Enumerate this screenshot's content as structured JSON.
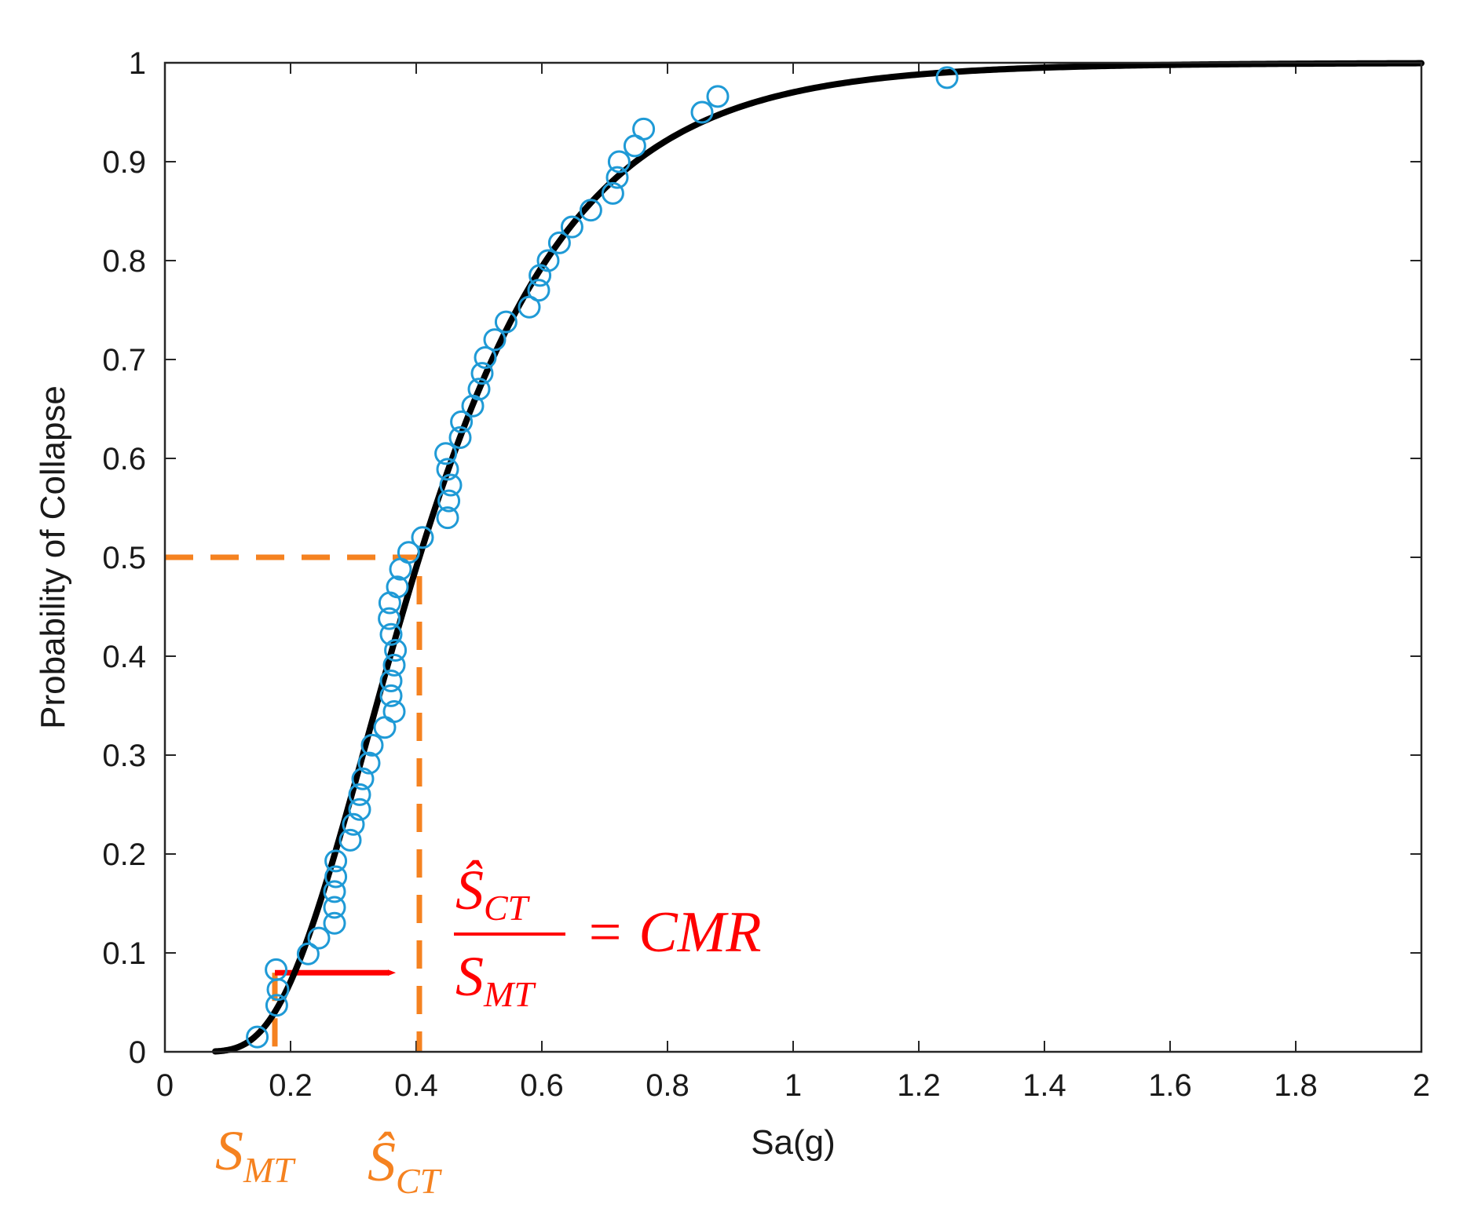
{
  "chart_data": {
    "type": "scatter",
    "xlabel": "Sa(g)",
    "ylabel": "Probability of Collapse",
    "xlim": [
      0,
      2
    ],
    "ylim": [
      0,
      1
    ],
    "xticks": [
      0,
      0.2,
      0.4,
      0.6,
      0.8,
      1,
      1.2,
      1.4,
      1.6,
      1.8,
      2
    ],
    "xtick_labels": [
      "0",
      "0.2",
      "0.4",
      "0.6",
      "0.8",
      "1",
      "1.2",
      "1.4",
      "1.6",
      "1.8",
      "2"
    ],
    "yticks": [
      0,
      0.1,
      0.2,
      0.3,
      0.4,
      0.5,
      0.6,
      0.7,
      0.8,
      0.9,
      1
    ],
    "ytick_labels": [
      "0",
      "0.1",
      "0.2",
      "0.3",
      "0.4",
      "0.5",
      "0.6",
      "0.7",
      "0.8",
      "0.9",
      "1"
    ],
    "grid": false,
    "fit_curve": {
      "name": "lognormal fragility fit",
      "color": "#000000",
      "median": 0.405,
      "beta": 0.48,
      "x_range": [
        0.08,
        2.0
      ]
    },
    "scatter_series": {
      "name": "collapse data",
      "color": "#1f9ad6",
      "points": [
        [
          0.147,
          0.015
        ],
        [
          0.178,
          0.047
        ],
        [
          0.18,
          0.063
        ],
        [
          0.177,
          0.083
        ],
        [
          0.228,
          0.099
        ],
        [
          0.245,
          0.115
        ],
        [
          0.27,
          0.13
        ],
        [
          0.27,
          0.146
        ],
        [
          0.27,
          0.162
        ],
        [
          0.272,
          0.177
        ],
        [
          0.272,
          0.193
        ],
        [
          0.295,
          0.214
        ],
        [
          0.3,
          0.23
        ],
        [
          0.31,
          0.245
        ],
        [
          0.31,
          0.26
        ],
        [
          0.315,
          0.276
        ],
        [
          0.325,
          0.292
        ],
        [
          0.33,
          0.31
        ],
        [
          0.35,
          0.328
        ],
        [
          0.365,
          0.344
        ],
        [
          0.36,
          0.36
        ],
        [
          0.36,
          0.375
        ],
        [
          0.365,
          0.391
        ],
        [
          0.367,
          0.406
        ],
        [
          0.36,
          0.422
        ],
        [
          0.357,
          0.438
        ],
        [
          0.358,
          0.454
        ],
        [
          0.37,
          0.47
        ],
        [
          0.375,
          0.488
        ],
        [
          0.388,
          0.505
        ],
        [
          0.41,
          0.52
        ],
        [
          0.45,
          0.54
        ],
        [
          0.452,
          0.557
        ],
        [
          0.455,
          0.573
        ],
        [
          0.45,
          0.589
        ],
        [
          0.447,
          0.605
        ],
        [
          0.47,
          0.621
        ],
        [
          0.472,
          0.637
        ],
        [
          0.49,
          0.653
        ],
        [
          0.5,
          0.67
        ],
        [
          0.505,
          0.686
        ],
        [
          0.51,
          0.702
        ],
        [
          0.525,
          0.72
        ],
        [
          0.543,
          0.738
        ],
        [
          0.58,
          0.753
        ],
        [
          0.595,
          0.77
        ],
        [
          0.597,
          0.785
        ],
        [
          0.61,
          0.8
        ],
        [
          0.628,
          0.818
        ],
        [
          0.648,
          0.834
        ],
        [
          0.678,
          0.851
        ],
        [
          0.713,
          0.868
        ],
        [
          0.72,
          0.884
        ],
        [
          0.723,
          0.9
        ],
        [
          0.748,
          0.916
        ],
        [
          0.762,
          0.933
        ],
        [
          0.855,
          0.95
        ],
        [
          0.88,
          0.966
        ],
        [
          1.245,
          0.985
        ]
      ]
    },
    "guides": {
      "color": "#f58220",
      "median_probability": 0.5,
      "s_ct_hat": 0.405,
      "s_mt": 0.175,
      "arrow_y": 0.08,
      "arrow_color": "#ff0000"
    },
    "annotations": {
      "s_mt_label": {
        "base": "S",
        "subscript": "MT"
      },
      "s_ct_label": {
        "base": "Ŝ",
        "subscript": "CT"
      },
      "cmr_equation": {
        "numerator_base": "Ŝ",
        "numerator_sub": "CT",
        "denominator_base": "S",
        "denominator_sub": "MT",
        "rhs": "= CMR"
      }
    }
  }
}
